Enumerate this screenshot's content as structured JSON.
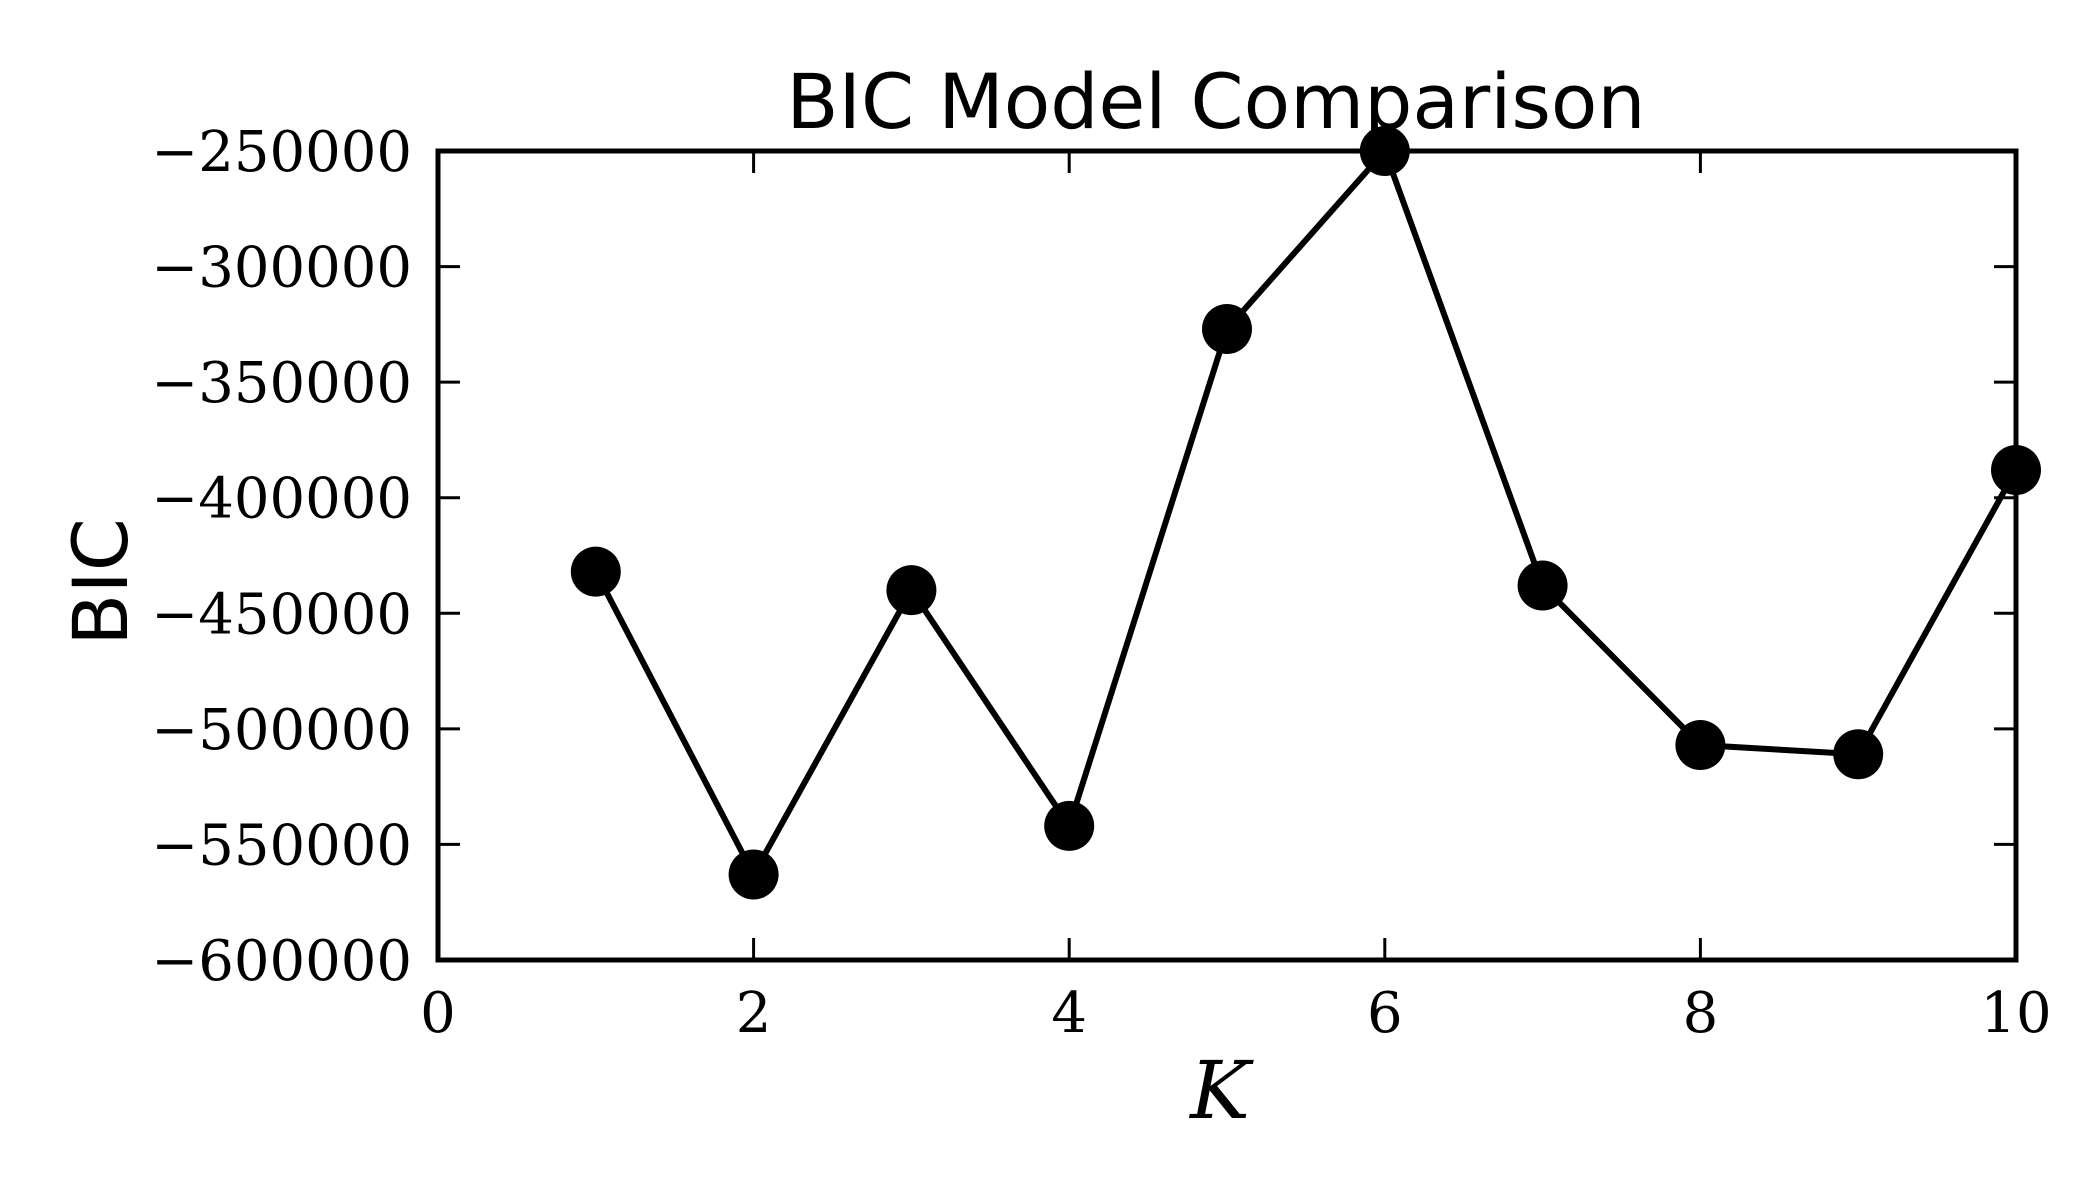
{
  "chart_data": {
    "type": "line",
    "title": "BIC Model Comparison",
    "xlabel": "K",
    "ylabel": "BIC",
    "xlim": [
      0,
      10
    ],
    "ylim": [
      -600000,
      -250000
    ],
    "x_ticks": [
      0,
      2,
      4,
      6,
      8,
      10
    ],
    "x_tick_labels": [
      "0",
      "2",
      "4",
      "6",
      "8",
      "10"
    ],
    "y_ticks": [
      -250000,
      -300000,
      -350000,
      -400000,
      -450000,
      -500000,
      -550000,
      -600000
    ],
    "y_tick_labels": [
      "−250000",
      "−300000",
      "−350000",
      "−400000",
      "−450000",
      "−500000",
      "−550000",
      "−600000"
    ],
    "grid": false,
    "series": [
      {
        "x": [
          1,
          2,
          3,
          4,
          5,
          6,
          7,
          8,
          9,
          10
        ],
        "values": [
          -432000,
          -563000,
          -440000,
          -542000,
          -327000,
          -250000,
          -438000,
          -507000,
          -511000,
          -388000
        ],
        "color": "#000000",
        "marker": "circle"
      }
    ]
  }
}
